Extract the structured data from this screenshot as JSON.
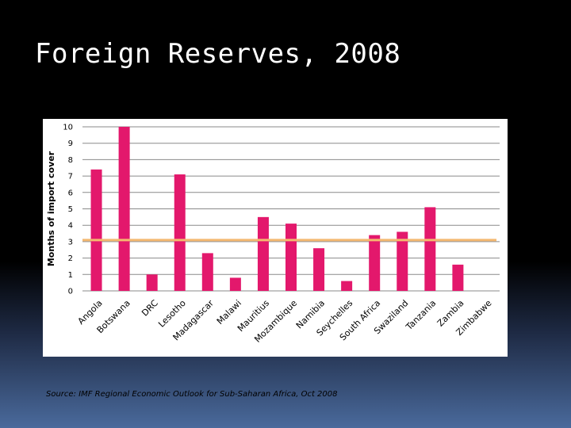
{
  "title": "Foreign Reserves, 2008",
  "source": "Source: IMF Regional Economic Outlook for Sub-Saharan Africa, Oct 2008",
  "colors": {
    "bar": "#e3186c",
    "reference_line": "#f4b870",
    "grid": "#8a8a8a",
    "text": "#000000"
  },
  "chart_data": {
    "type": "bar",
    "title": "",
    "xlabel": "",
    "ylabel": "Months of import cover",
    "ylim": [
      0,
      10
    ],
    "yticks": [
      0,
      1,
      2,
      3,
      4,
      5,
      6,
      7,
      8,
      9,
      10
    ],
    "grid": true,
    "categories": [
      "Angola",
      "Botswana",
      "DRC",
      "Lesotho",
      "Madagascar",
      "Malawi",
      "Mauritius",
      "Mozambique",
      "Namibia",
      "Seychelles",
      "South Africa",
      "Swaziland",
      "Tanzania",
      "Zambia",
      "Zimbabwe"
    ],
    "values": [
      7.4,
      10.0,
      1.0,
      7.1,
      2.3,
      0.8,
      4.5,
      4.1,
      2.6,
      0.6,
      3.4,
      3.6,
      5.1,
      1.6,
      0.0
    ],
    "reference_line": {
      "y": 3.1,
      "orientation": "horizontal"
    }
  }
}
